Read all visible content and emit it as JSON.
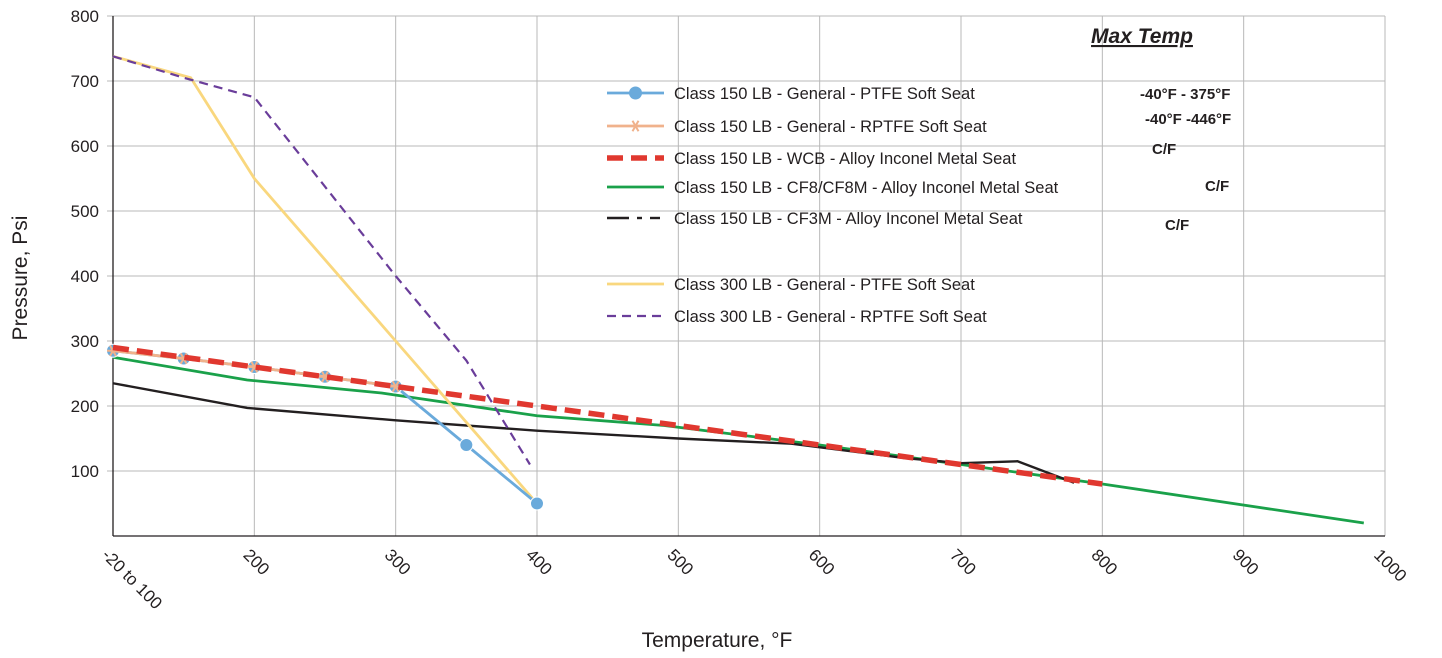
{
  "chart_data": {
    "type": "line",
    "xlabel": "Temperature, °F",
    "ylabel": "Pressure, Psi",
    "x_ticks": [
      "-20 to 100",
      "200",
      "300",
      "400",
      "500",
      "600",
      "700",
      "800",
      "900",
      "1000"
    ],
    "x_tick_values": [
      100,
      200,
      300,
      400,
      500,
      600,
      700,
      800,
      900,
      1000
    ],
    "xlim": [
      100,
      1000
    ],
    "y_ticks": [
      "100",
      "200",
      "300",
      "400",
      "500",
      "600",
      "700",
      "800"
    ],
    "y_tick_values": [
      100,
      200,
      300,
      400,
      500,
      600,
      700,
      800
    ],
    "ylim": [
      0,
      800
    ],
    "grid": true,
    "legend_title": "Max Temp",
    "legend_position": "top-right",
    "series": [
      {
        "name": "Class 150 LB - General - PTFE Soft Seat",
        "max_temp": "-40°F - 375°F",
        "color": "#6aaadb",
        "style": "solid-circle-markers",
        "points": [
          [
            100,
            285
          ],
          [
            150,
            273
          ],
          [
            200,
            260
          ],
          [
            250,
            245
          ],
          [
            300,
            230
          ],
          [
            350,
            140
          ],
          [
            400,
            50
          ]
        ]
      },
      {
        "name": "Class 150 LB - General - RPTFE Soft Seat",
        "max_temp": "-40°F -446°F",
        "color": "#f0b28c",
        "style": "solid-star-markers",
        "points": [
          [
            100,
            285
          ],
          [
            150,
            273
          ],
          [
            200,
            260
          ],
          [
            250,
            245
          ],
          [
            300,
            230
          ]
        ]
      },
      {
        "name": "Class 150 LB - WCB - Alloy Inconel Metal Seat",
        "max_temp": "C/F",
        "color": "#e0382f",
        "style": "thick-dashed",
        "points": [
          [
            100,
            290
          ],
          [
            200,
            260
          ],
          [
            300,
            230
          ],
          [
            400,
            200
          ],
          [
            500,
            170
          ],
          [
            600,
            140
          ],
          [
            700,
            110
          ],
          [
            800,
            80
          ]
        ]
      },
      {
        "name": "Class 150 LB - CF8/CF8M - Alloy Inconel Metal Seat",
        "max_temp": "C/F",
        "color": "#1aa14a",
        "style": "solid",
        "points": [
          [
            100,
            275
          ],
          [
            195,
            240
          ],
          [
            290,
            220
          ],
          [
            400,
            185
          ],
          [
            490,
            170
          ],
          [
            600,
            140
          ],
          [
            700,
            110
          ],
          [
            800,
            80
          ],
          [
            985,
            20
          ]
        ]
      },
      {
        "name": "Class 150 LB - CF3M - Alloy Inconel Metal Seat",
        "max_temp": "C/F",
        "color": "#231f20",
        "style": "dash-dot",
        "points": [
          [
            100,
            235
          ],
          [
            195,
            197
          ],
          [
            300,
            178
          ],
          [
            400,
            162
          ],
          [
            500,
            150
          ],
          [
            580,
            142
          ],
          [
            660,
            120
          ],
          [
            700,
            112
          ],
          [
            740,
            115
          ],
          [
            780,
            82
          ]
        ]
      },
      {
        "name": "Class 300 LB - General - PTFE Soft Seat",
        "color": "#f9d77e",
        "style": "solid",
        "points": [
          [
            100,
            738
          ],
          [
            155,
            705
          ],
          [
            200,
            550
          ],
          [
            300,
            300
          ],
          [
            400,
            50
          ]
        ]
      },
      {
        "name": "Class 300 LB - General - RPTFE Soft Seat",
        "color": "#6a3d9a",
        "style": "dashed",
        "points": [
          [
            100,
            738
          ],
          [
            150,
            705
          ],
          [
            200,
            675
          ],
          [
            300,
            400
          ],
          [
            350,
            270
          ],
          [
            395,
            110
          ]
        ]
      }
    ]
  }
}
